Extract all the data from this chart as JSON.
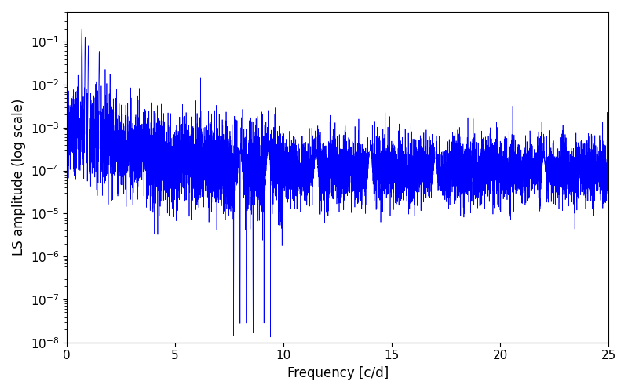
{
  "xlabel": "Frequency [c/d]",
  "ylabel": "LS amplitude (log scale)",
  "xlim": [
    0,
    25
  ],
  "ylim": [
    1e-08,
    0.5
  ],
  "line_color": "#0000ff",
  "line_width": 0.5,
  "figsize": [
    8.0,
    5.0
  ],
  "dpi": 100,
  "freq_max": 25.0,
  "n_points": 8000,
  "seed": 77,
  "background_color": "#ffffff",
  "xlabel_fontsize": 12,
  "ylabel_fontsize": 12,
  "tick_labelsize": 11
}
